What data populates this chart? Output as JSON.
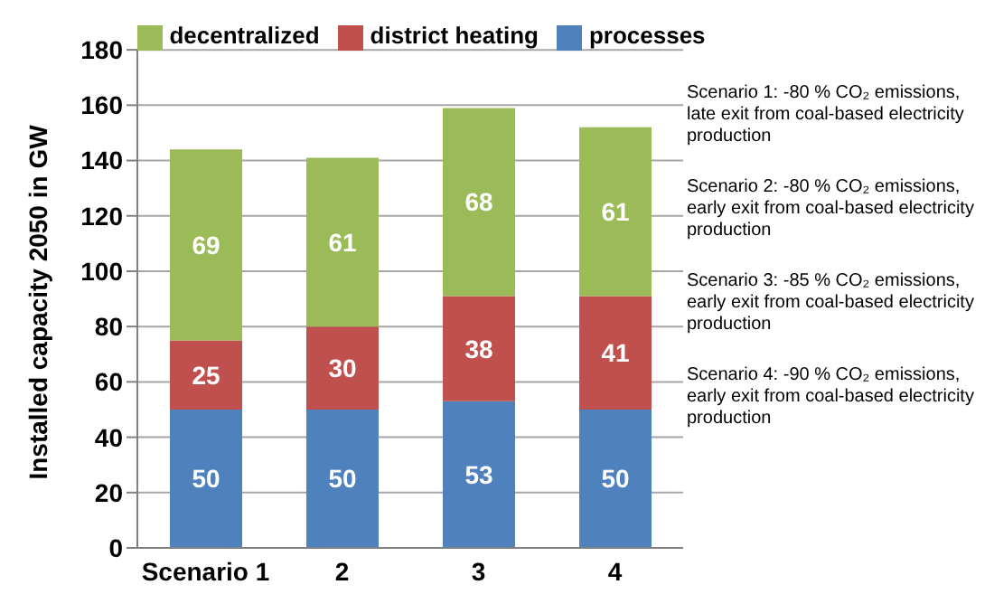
{
  "chart_data": {
    "type": "bar",
    "stacked": true,
    "ylabel": "Installed capacity 2050 in GW",
    "categories": [
      "Scenario 1",
      "2",
      "3",
      "4"
    ],
    "series": [
      {
        "name": "processes",
        "color": "#4f81bd",
        "values": [
          50,
          50,
          53,
          50
        ]
      },
      {
        "name": "district heating",
        "color": "#c0504d",
        "values": [
          25,
          30,
          38,
          41
        ]
      },
      {
        "name": "decentralized",
        "color": "#9bbb59",
        "values": [
          69,
          61,
          68,
          61
        ]
      }
    ],
    "ylim": [
      0,
      180
    ],
    "yticks": [
      0,
      20,
      40,
      60,
      80,
      100,
      120,
      140,
      160,
      180
    ],
    "grid": "y",
    "legend": "top",
    "data_labels": true,
    "annotations": [
      "Scenario 1: -80 % CO₂ emissions, late exit from coal-based electricity production",
      "Scenario 2: -80 % CO₂ emissions, early exit from coal-based electricity production",
      "Scenario 3: -85 % CO₂ emissions, early exit from coal-based electricity production",
      "Scenario 4: -90 % CO₂ emissions, early exit from coal-based electricity production"
    ]
  }
}
